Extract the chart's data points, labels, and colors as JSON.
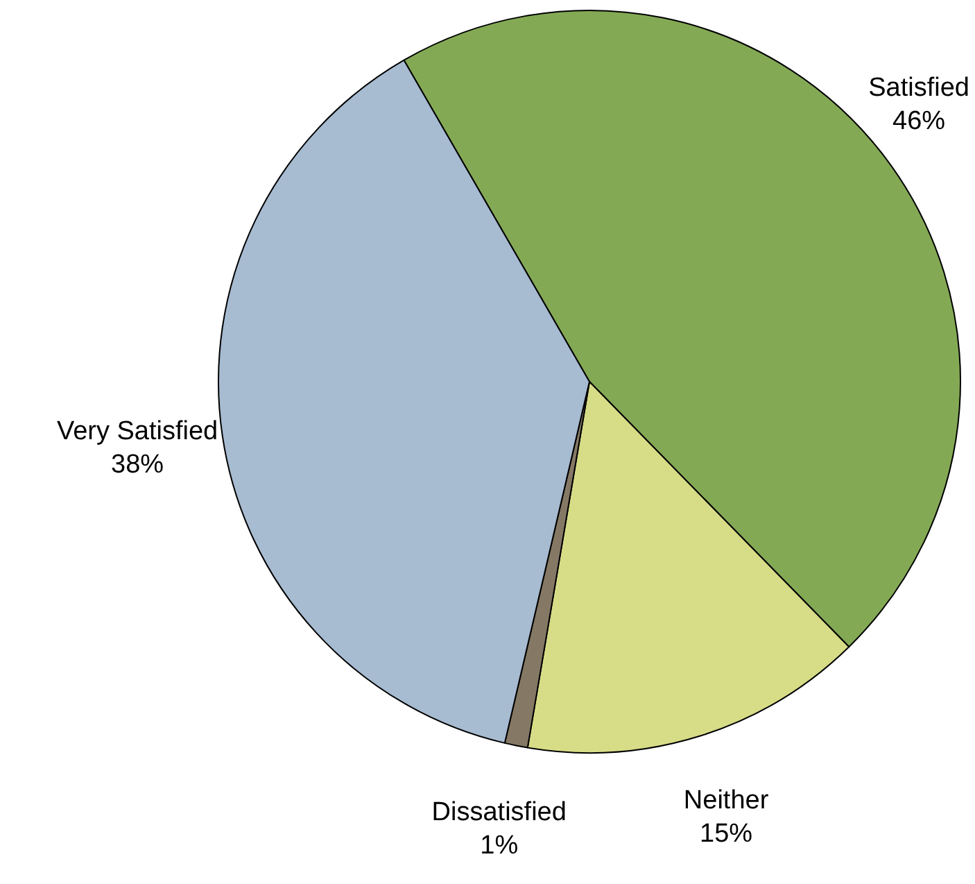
{
  "chart_data": {
    "type": "pie",
    "categories": [
      "Satisfied",
      "Neither",
      "Dissatisfied",
      "Very Satisfied"
    ],
    "values": [
      46,
      15,
      1,
      38
    ],
    "value_labels": [
      "46%",
      "15%",
      "1%",
      "38%"
    ],
    "colors": [
      "#84a955",
      "#d7dc87",
      "#857965",
      "#a7bbd1"
    ],
    "legend": false
  }
}
